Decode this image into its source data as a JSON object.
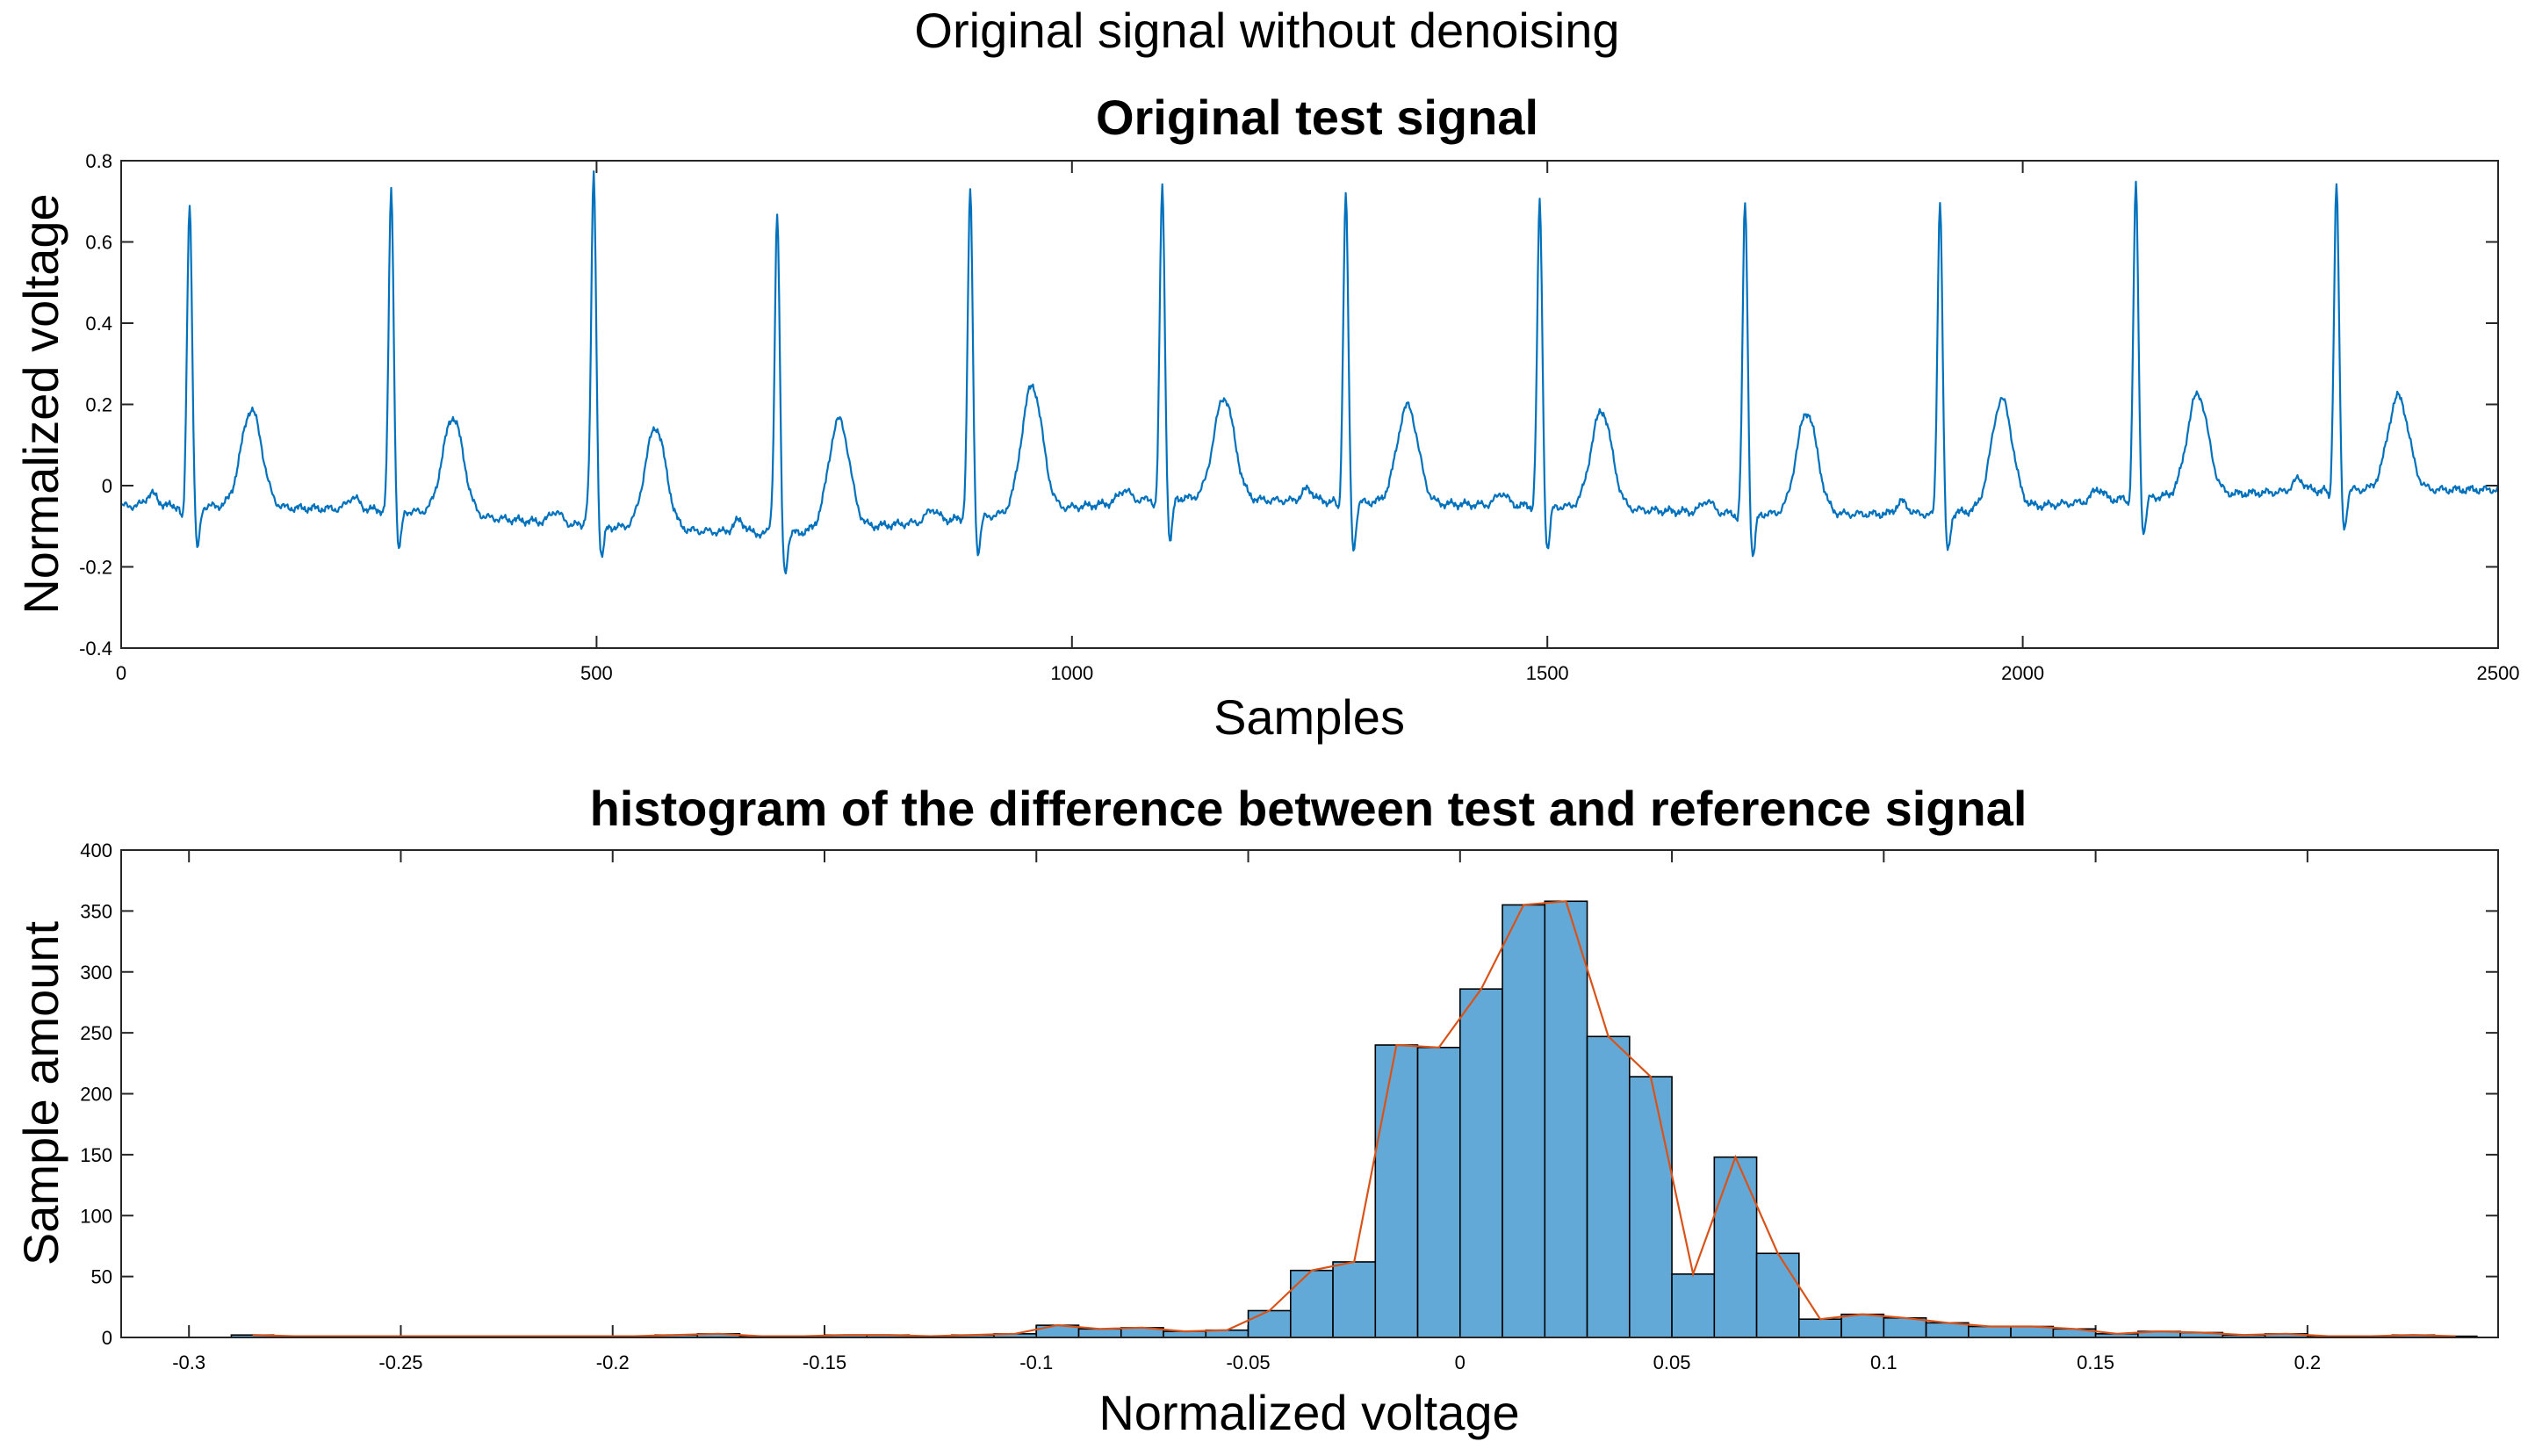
{
  "suptitle": "Original signal without denoising",
  "charts": [
    {
      "type": "line",
      "title": "Original test signal",
      "xlabel": "Samples",
      "ylabel": "Normalized voltage",
      "xlim": [
        0,
        2500
      ],
      "ylim": [
        -0.4,
        0.8
      ],
      "xticks": [
        0,
        500,
        1000,
        1500,
        2000,
        2500
      ],
      "xtick_labels": [
        "0",
        "500",
        "1000",
        "1500",
        "2000",
        "2500"
      ],
      "yticks": [
        -0.4,
        -0.2,
        0,
        0.2,
        0.4,
        0.6,
        0.8
      ],
      "ytick_labels": [
        "-0.4",
        "-0.2",
        "0",
        "0.2",
        "0.4",
        "0.6",
        "0.8"
      ],
      "color": "#0072BD",
      "beats": [
        {
          "r": 72,
          "rAmp": 0.7,
          "sAmp": -0.16,
          "qAmp": -0.1,
          "tAmp": 0.19,
          "base": -0.05
        },
        {
          "r": 284,
          "rAmp": 0.73,
          "sAmp": -0.16,
          "qAmp": -0.07,
          "tAmp": 0.18,
          "base": -0.06
        },
        {
          "r": 497,
          "rAmp": 0.77,
          "sAmp": -0.18,
          "qAmp": -0.06,
          "tAmp": 0.15,
          "base": -0.1
        },
        {
          "r": 690,
          "rAmp": 0.67,
          "sAmp": -0.22,
          "qAmp": -0.1,
          "tAmp": 0.15,
          "base": -0.12
        },
        {
          "r": 893,
          "rAmp": 0.73,
          "sAmp": -0.17,
          "qAmp": -0.08,
          "tAmp": 0.23,
          "base": -0.08
        },
        {
          "r": 1095,
          "rAmp": 0.74,
          "sAmp": -0.14,
          "qAmp": -0.06,
          "tAmp": 0.22,
          "base": -0.03
        },
        {
          "r": 1288,
          "rAmp": 0.72,
          "sAmp": -0.16,
          "qAmp": -0.07,
          "tAmp": 0.2,
          "base": -0.04
        },
        {
          "r": 1492,
          "rAmp": 0.7,
          "sAmp": -0.16,
          "qAmp": -0.06,
          "tAmp": 0.19,
          "base": -0.05
        },
        {
          "r": 1708,
          "rAmp": 0.7,
          "sAmp": -0.18,
          "qAmp": -0.09,
          "tAmp": 0.18,
          "base": -0.07
        },
        {
          "r": 1913,
          "rAmp": 0.7,
          "sAmp": -0.17,
          "qAmp": -0.08,
          "tAmp": 0.2,
          "base": -0.07
        },
        {
          "r": 2119,
          "rAmp": 0.74,
          "sAmp": -0.12,
          "qAmp": -0.05,
          "tAmp": 0.22,
          "base": -0.03
        },
        {
          "r": 2330,
          "rAmp": 0.74,
          "sAmp": -0.11,
          "qAmp": -0.04,
          "tAmp": 0.22,
          "base": -0.01
        }
      ]
    },
    {
      "type": "bar",
      "title": "histogram of the difference between test and reference signal",
      "xlabel": "Normalized voltage",
      "ylabel": "Sample amount",
      "xlim": [
        -0.316,
        0.245
      ],
      "ylim": [
        0,
        400
      ],
      "xticks": [
        -0.3,
        -0.25,
        -0.2,
        -0.15,
        -0.1,
        -0.05,
        0,
        0.05,
        0.1,
        0.15,
        0.2
      ],
      "xtick_labels": [
        "-0.3",
        "-0.25",
        "-0.2",
        "-0.15",
        "-0.1",
        "-0.05",
        "0",
        "0.05",
        "0.1",
        "0.15",
        "0.2"
      ],
      "yticks": [
        0,
        50,
        100,
        150,
        200,
        250,
        300,
        350,
        400
      ],
      "ytick_labels": [
        "0",
        "50",
        "100",
        "150",
        "200",
        "250",
        "300",
        "350",
        "400"
      ],
      "bin_start": -0.29,
      "bin_width": 0.01,
      "bar_color": "#4DBEEE",
      "bar_fill": "#63A9D8",
      "curve_color": "#D95319",
      "counts": [
        2,
        1,
        1,
        1,
        1,
        1,
        1,
        1,
        1,
        1,
        2,
        3,
        1,
        1,
        2,
        2,
        1,
        2,
        3,
        10,
        7,
        8,
        5,
        6,
        22,
        55,
        62,
        240,
        238,
        286,
        355,
        358,
        247,
        214,
        52,
        148,
        69,
        15,
        19,
        16,
        12,
        9,
        9,
        7,
        3,
        5,
        4,
        2,
        3,
        1,
        1,
        2,
        1
      ]
    }
  ]
}
